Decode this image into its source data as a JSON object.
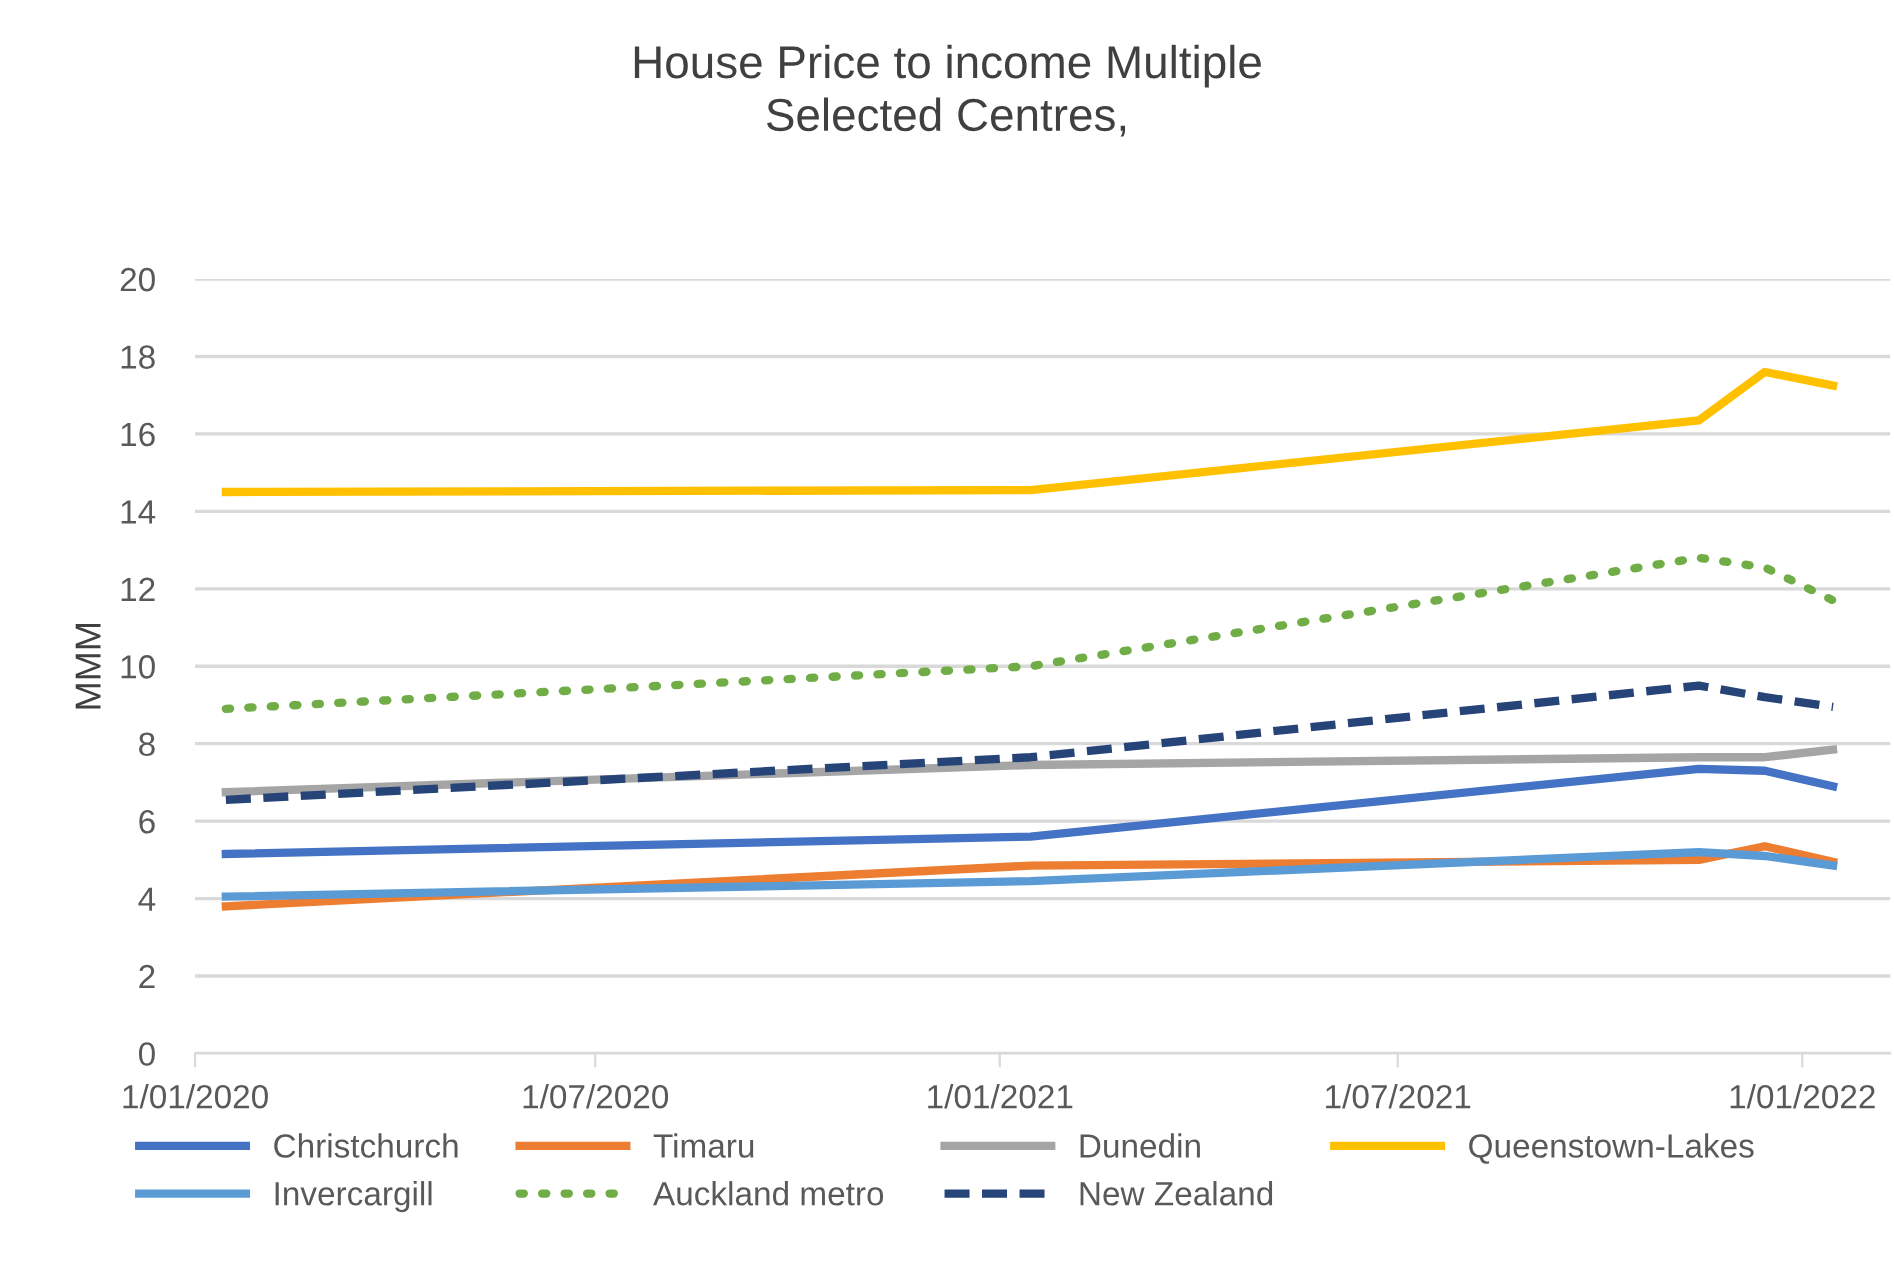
{
  "chart_data": {
    "type": "line",
    "title": "House Price to income Multiple\nSelected Centres,",
    "ylabel": "MMM",
    "x": [
      "2020-01-15",
      "2021-01-15",
      "2021-11-15",
      "2021-12-15",
      "2022-01-15"
    ],
    "series": [
      {
        "name": "Christchurch",
        "color": "#4472c4",
        "values": [
          5.15,
          5.6,
          7.35,
          7.3,
          6.9
        ]
      },
      {
        "name": "Timaru",
        "color": "#ed7d31",
        "values": [
          3.8,
          4.85,
          5.0,
          5.35,
          4.95
        ]
      },
      {
        "name": "Dunedin",
        "color": "#a5a5a5",
        "values": [
          6.75,
          7.45,
          7.65,
          7.65,
          7.85
        ]
      },
      {
        "name": "Queenstown-Lakes",
        "color": "#ffc000",
        "values": [
          14.5,
          14.55,
          16.35,
          17.6,
          17.25
        ]
      },
      {
        "name": "Invercargill",
        "color": "#5b9bd5",
        "values": [
          4.05,
          4.45,
          5.2,
          5.1,
          4.85
        ]
      },
      {
        "name": "Auckland metro",
        "color": "#70ad47",
        "line_style": "dotted",
        "values": [
          8.9,
          10.0,
          12.8,
          12.55,
          11.7
        ]
      },
      {
        "name": "New Zealand",
        "color": "#264478",
        "line_style": "dashed",
        "values": [
          6.55,
          7.65,
          9.5,
          9.2,
          8.95
        ]
      }
    ],
    "xlim": [
      "2020-01-01",
      "2022-02-10"
    ],
    "xticks": [
      {
        "value": "2020-01-01",
        "label": "1/01/2020"
      },
      {
        "value": "2020-07-01",
        "label": "1/07/2020"
      },
      {
        "value": "2021-01-01",
        "label": "1/01/2021"
      },
      {
        "value": "2021-07-01",
        "label": "1/07/2021"
      },
      {
        "value": "2022-01-01",
        "label": "1/01/2022"
      }
    ],
    "ylim": [
      0,
      20
    ],
    "yticks": [
      0,
      2,
      4,
      6,
      8,
      10,
      12,
      14,
      16,
      18,
      20
    ],
    "grid": "y",
    "legend": "bottom",
    "marker": "none"
  }
}
